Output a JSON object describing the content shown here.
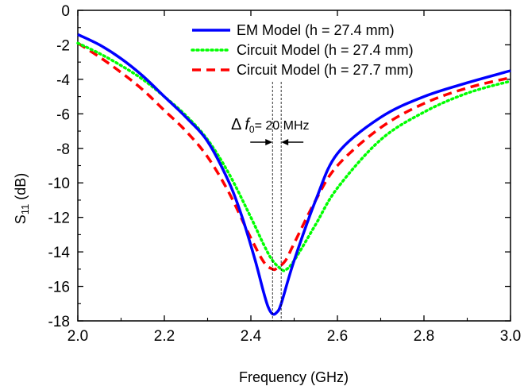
{
  "chart_data": {
    "type": "line",
    "xlabel": "Frequency (GHz)",
    "ylabel": "S11 (dB)",
    "ylabel_main": "S",
    "ylabel_sub": "11",
    "ylabel_rest": " (dB)",
    "xlim": [
      2.0,
      3.0
    ],
    "ylim": [
      -18,
      0
    ],
    "xticks": [
      2.0,
      2.2,
      2.4,
      2.6,
      2.8,
      3.0
    ],
    "xtick_labels": [
      "2.0",
      "2.2",
      "2.4",
      "2.6",
      "2.8",
      "3.0"
    ],
    "yticks": [
      0,
      -2,
      -4,
      -6,
      -8,
      -10,
      -12,
      -14,
      -16,
      -18
    ],
    "ytick_labels": [
      "0",
      "-2",
      "-4",
      "-6",
      "-8",
      "-10",
      "-12",
      "-14",
      "-16",
      "-18"
    ],
    "grid": false,
    "legend_position": "top-right",
    "series": [
      {
        "name": "EM Model (h = 27.4 mm)",
        "color": "#0000ff",
        "style": "solid",
        "x": [
          2.0,
          2.05,
          2.1,
          2.15,
          2.2,
          2.25,
          2.3,
          2.35,
          2.38,
          2.41,
          2.43,
          2.44,
          2.45,
          2.46,
          2.47,
          2.5,
          2.55,
          2.6,
          2.7,
          2.8,
          2.9,
          3.0
        ],
        "y": [
          -1.4,
          -2.0,
          -2.8,
          -3.8,
          -5.0,
          -6.2,
          -7.6,
          -10.0,
          -12.0,
          -14.5,
          -16.4,
          -17.2,
          -17.6,
          -17.5,
          -17.0,
          -14.5,
          -11.0,
          -8.3,
          -6.2,
          -5.0,
          -4.2,
          -3.5
        ]
      },
      {
        "name": "Circuit Model (h = 27.4 mm)",
        "color": "#00ff00",
        "style": "dotted",
        "x": [
          2.0,
          2.05,
          2.1,
          2.15,
          2.2,
          2.25,
          2.3,
          2.35,
          2.4,
          2.43,
          2.45,
          2.47,
          2.48,
          2.5,
          2.55,
          2.6,
          2.7,
          2.8,
          2.9,
          3.0
        ],
        "y": [
          -1.9,
          -2.5,
          -3.2,
          -4.0,
          -5.0,
          -6.1,
          -7.5,
          -9.5,
          -12.0,
          -13.6,
          -14.5,
          -15.0,
          -15.05,
          -14.5,
          -12.4,
          -10.3,
          -7.5,
          -5.9,
          -4.8,
          -4.1
        ]
      },
      {
        "name": "Circuit Model (h = 27.7 mm)",
        "color": "#ff0000",
        "style": "dashed",
        "x": [
          2.0,
          2.05,
          2.1,
          2.15,
          2.2,
          2.25,
          2.3,
          2.35,
          2.4,
          2.43,
          2.45,
          2.46,
          2.48,
          2.5,
          2.55,
          2.6,
          2.7,
          2.8,
          2.9,
          3.0
        ],
        "y": [
          -1.9,
          -2.7,
          -3.6,
          -4.6,
          -5.8,
          -7.0,
          -8.5,
          -10.6,
          -13.2,
          -14.6,
          -15.0,
          -14.95,
          -14.5,
          -13.5,
          -11.0,
          -9.0,
          -6.8,
          -5.4,
          -4.5,
          -3.9
        ]
      }
    ],
    "annotation": {
      "delta": "Δ",
      "f": "f",
      "sub": "0",
      "rest": "= 20 MHz",
      "x1": 2.45,
      "x2": 2.47
    }
  }
}
